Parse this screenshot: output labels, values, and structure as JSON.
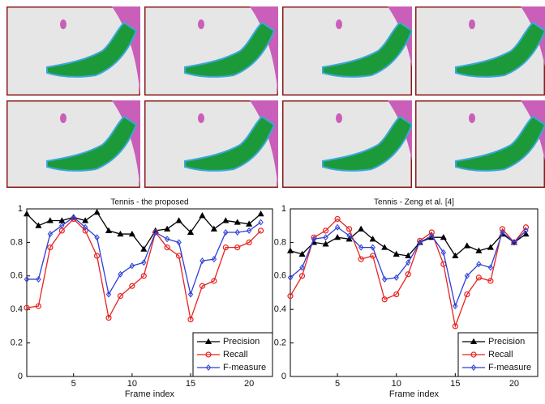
{
  "chart_data": [
    {
      "type": "line",
      "title": "Tennis - the proposed",
      "x_label": "Frame index",
      "x": [
        1,
        2,
        3,
        4,
        5,
        6,
        7,
        8,
        9,
        10,
        11,
        12,
        13,
        14,
        15,
        16,
        17,
        18,
        19,
        20,
        21
      ],
      "xlim": [
        1,
        22
      ],
      "xticks": [
        5,
        10,
        15,
        20
      ],
      "ylim": [
        0,
        1
      ],
      "yticks": [
        0,
        0.2,
        0.4,
        0.6,
        0.8,
        1
      ],
      "grid": false,
      "legend": "lower right",
      "series": [
        {
          "name": "Precision",
          "color": "#000000",
          "marker": "triangle",
          "values": [
            0.97,
            0.9,
            0.93,
            0.93,
            0.95,
            0.93,
            0.98,
            0.87,
            0.85,
            0.85,
            0.76,
            0.87,
            0.88,
            0.93,
            0.86,
            0.96,
            0.88,
            0.93,
            0.92,
            0.91,
            0.97
          ]
        },
        {
          "name": "Recall",
          "color": "#e8231f",
          "marker": "circle",
          "values": [
            0.41,
            0.42,
            0.77,
            0.87,
            0.94,
            0.87,
            0.72,
            0.35,
            0.48,
            0.54,
            0.6,
            0.86,
            0.77,
            0.72,
            0.34,
            0.54,
            0.57,
            0.77,
            0.77,
            0.8,
            0.87
          ]
        },
        {
          "name": "F-measure",
          "color": "#2d3fd6",
          "marker": "diamond",
          "values": [
            0.58,
            0.58,
            0.85,
            0.9,
            0.95,
            0.89,
            0.83,
            0.49,
            0.61,
            0.66,
            0.68,
            0.86,
            0.82,
            0.8,
            0.49,
            0.69,
            0.7,
            0.86,
            0.86,
            0.87,
            0.92
          ]
        }
      ]
    },
    {
      "type": "line",
      "title": "Tennis - Zeng et al. [4]",
      "x_label": "Frame index",
      "x": [
        1,
        2,
        3,
        4,
        5,
        6,
        7,
        8,
        9,
        10,
        11,
        12,
        13,
        14,
        15,
        16,
        17,
        18,
        19,
        20,
        21
      ],
      "xlim": [
        1,
        22
      ],
      "xticks": [
        5,
        10,
        15,
        20
      ],
      "ylim": [
        0,
        1
      ],
      "yticks": [
        0,
        0.2,
        0.4,
        0.6,
        0.8,
        1
      ],
      "grid": false,
      "legend": "lower right",
      "series": [
        {
          "name": "Precision",
          "color": "#000000",
          "marker": "triangle",
          "values": [
            0.75,
            0.73,
            0.8,
            0.79,
            0.83,
            0.82,
            0.88,
            0.82,
            0.77,
            0.73,
            0.72,
            0.8,
            0.83,
            0.83,
            0.72,
            0.78,
            0.75,
            0.77,
            0.85,
            0.8,
            0.85
          ]
        },
        {
          "name": "Recall",
          "color": "#e8231f",
          "marker": "circle",
          "values": [
            0.48,
            0.6,
            0.83,
            0.87,
            0.94,
            0.88,
            0.7,
            0.72,
            0.46,
            0.49,
            0.61,
            0.81,
            0.86,
            0.67,
            0.3,
            0.49,
            0.59,
            0.57,
            0.88,
            0.8,
            0.89
          ]
        },
        {
          "name": "F-measure",
          "color": "#2d3fd6",
          "marker": "diamond",
          "values": [
            0.59,
            0.65,
            0.82,
            0.83,
            0.89,
            0.84,
            0.77,
            0.77,
            0.58,
            0.59,
            0.68,
            0.8,
            0.84,
            0.74,
            0.42,
            0.6,
            0.67,
            0.65,
            0.86,
            0.8,
            0.87
          ]
        }
      ]
    }
  ]
}
